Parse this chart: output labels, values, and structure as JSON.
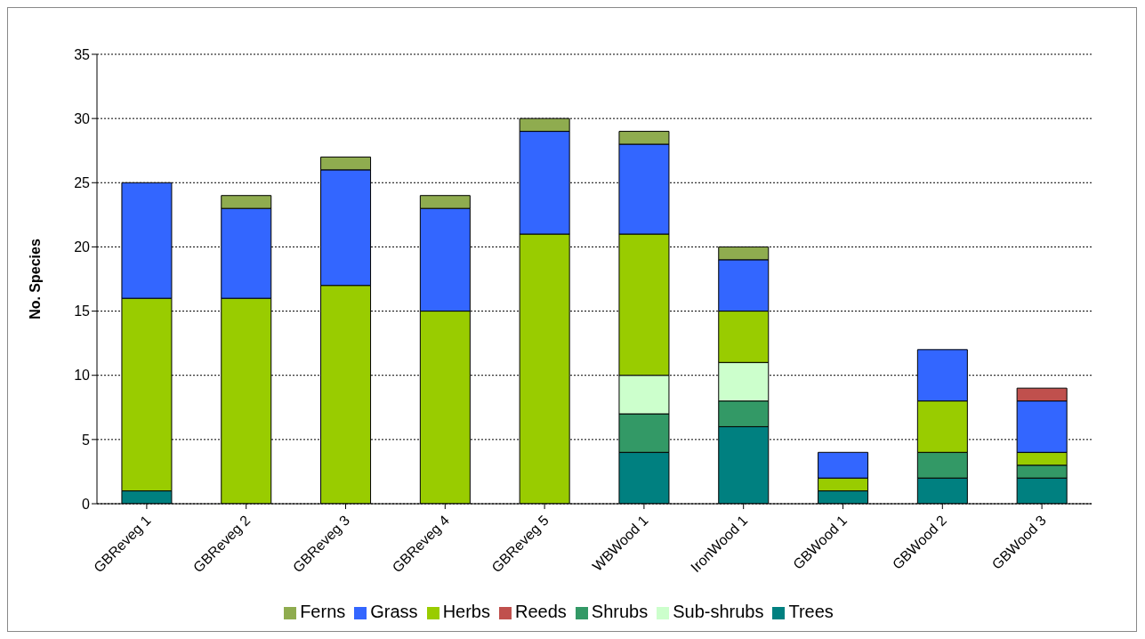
{
  "chart_data": {
    "type": "bar",
    "stacked": true,
    "ylabel": "No. Species",
    "categories": [
      "GBReveg 1",
      "GBReveg 2",
      "GBReveg 3",
      "GBReveg 4",
      "GBReveg 5",
      "WBWood 1",
      "IronWood 1",
      "GBWood 1",
      "GBWood 2",
      "GBWood 3"
    ],
    "series": [
      {
        "name": "Trees",
        "color": "#008080",
        "values": [
          1,
          0,
          0,
          0,
          0,
          4,
          6,
          1,
          2,
          2
        ]
      },
      {
        "name": "Shrubs",
        "color": "#339966",
        "values": [
          0,
          0,
          0,
          0,
          0,
          3,
          2,
          0,
          2,
          1
        ]
      },
      {
        "name": "Sub-shrubs",
        "color": "#ccffcc",
        "values": [
          0,
          0,
          0,
          0,
          0,
          3,
          3,
          0,
          0,
          0
        ]
      },
      {
        "name": "Herbs",
        "color": "#99cc00",
        "values": [
          15,
          16,
          17,
          15,
          21,
          11,
          4,
          1,
          4,
          1
        ]
      },
      {
        "name": "Grass",
        "color": "#3366ff",
        "values": [
          9,
          7,
          9,
          8,
          8,
          7,
          4,
          2,
          4,
          4
        ]
      },
      {
        "name": "Reeds",
        "color": "#c0504d",
        "values": [
          0,
          0,
          0,
          0,
          0,
          0,
          0,
          0,
          0,
          1
        ]
      },
      {
        "name": "Ferns",
        "color": "#8fac4f",
        "values": [
          0,
          1,
          1,
          1,
          1,
          1,
          1,
          0,
          0,
          0
        ]
      }
    ],
    "ylim": [
      0,
      35
    ],
    "yticks": [
      0,
      5,
      10,
      15,
      20,
      25,
      30,
      35
    ],
    "grid": "y",
    "legend": "bottom"
  }
}
